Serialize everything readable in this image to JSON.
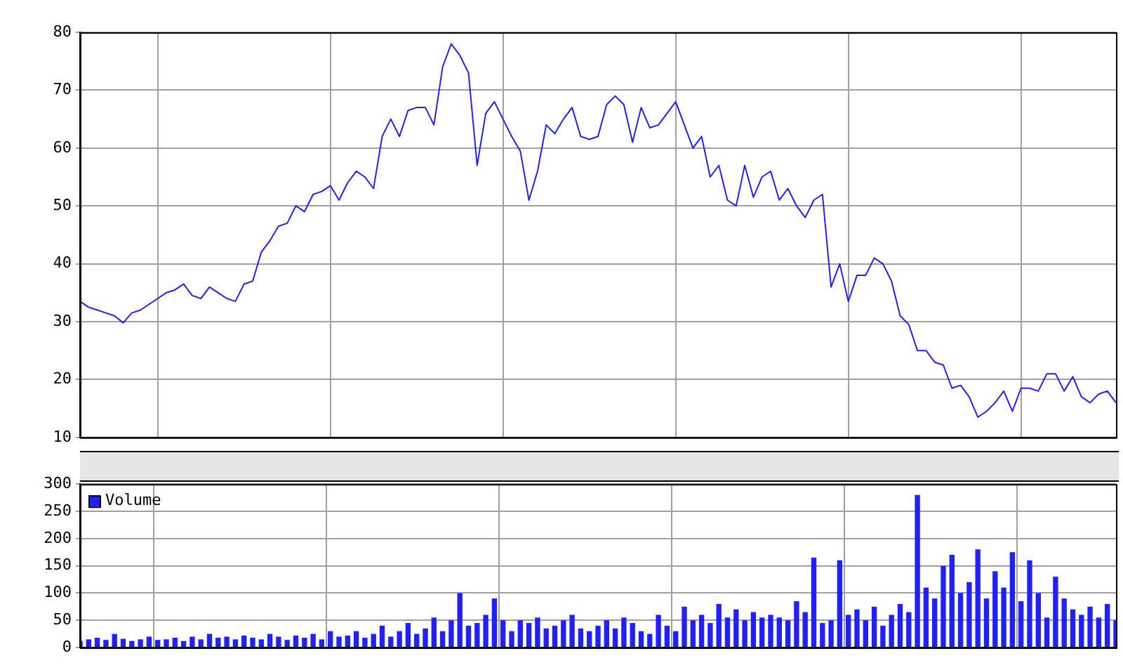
{
  "chart_data": [
    {
      "type": "line",
      "categories": [
        null,
        null,
        null,
        null,
        null,
        null,
        null,
        null,
        null,
        null,
        null,
        null,
        null,
        null,
        null,
        null,
        null,
        null,
        null,
        null,
        null,
        null,
        null,
        null,
        null,
        null,
        null,
        null,
        null,
        null,
        null,
        null,
        null,
        null,
        null,
        null,
        null,
        null,
        null,
        null,
        null,
        null,
        null,
        null,
        null,
        null,
        null,
        null,
        null,
        null,
        null,
        null,
        null,
        null,
        null,
        null,
        null,
        null,
        null,
        null,
        null,
        null,
        null,
        null,
        null,
        null,
        null,
        null,
        null,
        null,
        null,
        null,
        null,
        null,
        null,
        null,
        null,
        null,
        null,
        null,
        null,
        null,
        null,
        null,
        null,
        null,
        null,
        null,
        null,
        null,
        null,
        null,
        null,
        null,
        null,
        null,
        null,
        null,
        null,
        null,
        null,
        null,
        null,
        null,
        null,
        null,
        null,
        null,
        null,
        null,
        null,
        null,
        null,
        null,
        null,
        null,
        null,
        null,
        null,
        null,
        null
      ],
      "series": [
        {
          "color": "#2020ff",
          "values": [
            33.5,
            32.5,
            32,
            31.5,
            31,
            29.8,
            31.5,
            32,
            33,
            34,
            35,
            35.5,
            36.5,
            34.5,
            34,
            36,
            35,
            34,
            33.5,
            36.5,
            37,
            42,
            44,
            46.5,
            47,
            50,
            49,
            52,
            52.5,
            53.5,
            51,
            54,
            56,
            55,
            53,
            62,
            65,
            62,
            66.5,
            67,
            67,
            64,
            74,
            78,
            76,
            73,
            57,
            66,
            68,
            65,
            62,
            59.5,
            51,
            56,
            64,
            62.5,
            65,
            67,
            62,
            61.5,
            62,
            67.5,
            69,
            67.5,
            61,
            67,
            63.5,
            64,
            66,
            68,
            64,
            60,
            62,
            55,
            57,
            51,
            50,
            57,
            51.5,
            55,
            56,
            51,
            53,
            50,
            48,
            51,
            52,
            36,
            40,
            33.5,
            38,
            38,
            41,
            40,
            37,
            31,
            29.5,
            25,
            25,
            23,
            22.5,
            18.5,
            19,
            17,
            13.5,
            14.5,
            16,
            18,
            14.5,
            18.5,
            18.5,
            18,
            21,
            21,
            18,
            20.5,
            17,
            16,
            17.5,
            18,
            16
          ]
        }
      ],
      "ylim": [
        10,
        80
      ],
      "yticks": [
        10,
        20,
        30,
        40,
        50,
        60,
        70,
        80
      ],
      "grid": true,
      "tick_labels": "y",
      "marker": "none",
      "line_style": "solid",
      "legend": false
    },
    {
      "type": "bar",
      "categories": [
        null,
        null,
        null,
        null,
        null,
        null,
        null,
        null,
        null,
        null,
        null,
        null,
        null,
        null,
        null,
        null,
        null,
        null,
        null,
        null,
        null,
        null,
        null,
        null,
        null,
        null,
        null,
        null,
        null,
        null,
        null,
        null,
        null,
        null,
        null,
        null,
        null,
        null,
        null,
        null,
        null,
        null,
        null,
        null,
        null,
        null,
        null,
        null,
        null,
        null,
        null,
        null,
        null,
        null,
        null,
        null,
        null,
        null,
        null,
        null,
        null,
        null,
        null,
        null,
        null,
        null,
        null,
        null,
        null,
        null,
        null,
        null,
        null,
        null,
        null,
        null,
        null,
        null,
        null,
        null,
        null,
        null,
        null,
        null,
        null,
        null,
        null,
        null,
        null,
        null,
        null,
        null,
        null,
        null,
        null,
        null,
        null,
        null,
        null,
        null,
        null,
        null,
        null,
        null,
        null,
        null,
        null,
        null,
        null,
        null,
        null,
        null,
        null,
        null,
        null,
        null,
        null,
        null,
        null,
        null,
        null
      ],
      "series": [
        {
          "name": "Volume",
          "color": "#2020ff",
          "values": [
            12,
            15,
            18,
            14,
            25,
            16,
            12,
            15,
            20,
            14,
            15,
            18,
            12,
            20,
            15,
            25,
            18,
            20,
            15,
            22,
            18,
            15,
            25,
            20,
            14,
            22,
            18,
            25,
            15,
            30,
            20,
            22,
            30,
            18,
            25,
            40,
            20,
            30,
            45,
            25,
            35,
            55,
            30,
            50,
            100,
            40,
            45,
            60,
            90,
            50,
            30,
            50,
            45,
            55,
            35,
            40,
            50,
            60,
            35,
            30,
            40,
            50,
            35,
            55,
            45,
            30,
            25,
            60,
            40,
            30,
            75,
            50,
            60,
            45,
            80,
            55,
            70,
            50,
            65,
            55,
            60,
            55,
            50,
            85,
            65,
            165,
            45,
            50,
            160,
            60,
            70,
            50,
            75,
            40,
            60,
            80,
            65,
            280,
            110,
            90,
            150,
            170,
            100,
            120,
            180,
            90,
            140,
            110,
            175,
            85,
            160,
            100,
            55,
            130,
            90,
            70,
            60,
            75,
            55,
            80,
            50
          ]
        }
      ],
      "ylim": [
        0,
        300
      ],
      "yticks": [
        0,
        50,
        100,
        150,
        200,
        250,
        300
      ],
      "grid": true,
      "tick_labels": "y",
      "legend": "top left"
    }
  ]
}
